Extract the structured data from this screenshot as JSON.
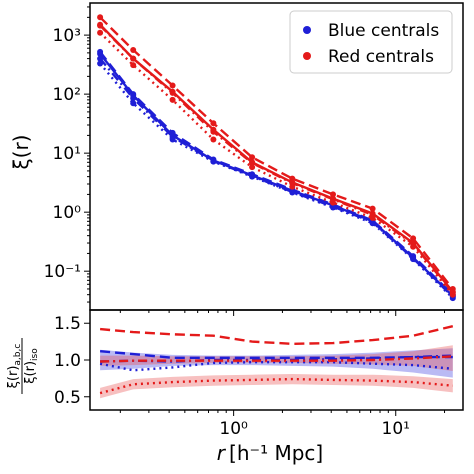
{
  "chart_data": [
    {
      "type": "line",
      "panel": "top",
      "ylabel": "ξ(r)",
      "yscale": "log",
      "xscale": "log",
      "xlim": [
        0.13,
        26
      ],
      "ylim": [
        0.022,
        3500
      ],
      "ytick_labels": [
        "10⁻¹",
        "10⁰",
        "10¹",
        "10²",
        "10³"
      ],
      "ytick_values": [
        0.1,
        1,
        10,
        100,
        1000
      ],
      "legend": {
        "position": "top-right",
        "entries": [
          "Blue centrals",
          "Red centrals"
        ]
      },
      "x": [
        0.15,
        0.24,
        0.42,
        0.75,
        1.3,
        2.3,
        4.1,
        7.2,
        12.8,
        22.5
      ],
      "series": [
        {
          "name": "Blue centrals",
          "color": "#1f1fd6",
          "dash": "solid",
          "values": [
            480,
            95,
            20,
            7.5,
            4.2,
            2.3,
            1.3,
            0.7,
            0.17,
            0.038
          ]
        },
        {
          "name": "",
          "color": "#1f1fd6",
          "dash": "dashed",
          "values": [
            520,
            100,
            22,
            7.8,
            4.4,
            2.4,
            1.35,
            0.72,
            0.18,
            0.04
          ]
        },
        {
          "name": "",
          "color": "#1f1fd6",
          "dash": "dashdot",
          "values": [
            400,
            85,
            19,
            7.3,
            4.1,
            2.2,
            1.25,
            0.68,
            0.165,
            0.037
          ]
        },
        {
          "name": "",
          "color": "#1f1fd6",
          "dash": "dotted",
          "values": [
            330,
            70,
            17,
            7.2,
            4.0,
            2.15,
            1.2,
            0.65,
            0.16,
            0.035
          ]
        },
        {
          "name": "Red centrals",
          "color": "#e41a1a",
          "dash": "solid",
          "values": [
            1500,
            400,
            110,
            25,
            7.0,
            3.2,
            1.7,
            0.95,
            0.3,
            0.045
          ]
        },
        {
          "name": "",
          "color": "#e41a1a",
          "dash": "dashed",
          "values": [
            2000,
            560,
            140,
            32,
            8.5,
            3.7,
            2.0,
            1.15,
            0.36,
            0.05
          ]
        },
        {
          "name": "",
          "color": "#e41a1a",
          "dash": "dashdot",
          "values": [
            1450,
            400,
            105,
            23,
            6.8,
            3.1,
            1.65,
            0.9,
            0.29,
            0.043
          ]
        },
        {
          "name": "",
          "color": "#e41a1a",
          "dash": "dotted",
          "values": [
            1100,
            310,
            80,
            17,
            5.8,
            2.7,
            1.45,
            0.8,
            0.26,
            0.04
          ]
        }
      ]
    },
    {
      "type": "line",
      "panel": "bottom",
      "ylabel_num": "ξ(r)",
      "ylabel_num_sub": "a,b,c",
      "ylabel_den": "ξ(r)",
      "ylabel_den_sub": "iso",
      "xlabel_r": "r",
      "xlabel_units": "[h⁻¹ Mpc]",
      "xscale": "log",
      "xlim": [
        0.13,
        26
      ],
      "ylim": [
        0.32,
        1.68
      ],
      "ytick_labels": [
        "0.5",
        "1.0",
        "1.5"
      ],
      "ytick_values": [
        0.5,
        1.0,
        1.5
      ],
      "xtick_labels": [
        "10⁰",
        "10¹"
      ],
      "xtick_values": [
        1,
        10
      ],
      "x": [
        0.15,
        0.24,
        0.42,
        0.75,
        1.3,
        2.3,
        4.1,
        7.2,
        12.8,
        22.5
      ],
      "bands": [
        {
          "color": "#3a3ae0",
          "lower": [
            0.86,
            0.88,
            0.92,
            0.93,
            0.93,
            0.92,
            0.91,
            0.88,
            0.83,
            0.76
          ],
          "upper": [
            1.14,
            1.1,
            1.07,
            1.06,
            1.06,
            1.07,
            1.08,
            1.1,
            1.13,
            1.16
          ]
        },
        {
          "color": "#e84a4a",
          "lower": [
            0.92,
            0.93,
            0.95,
            0.96,
            0.96,
            0.96,
            0.95,
            0.94,
            0.92,
            0.85
          ],
          "upper": [
            1.06,
            1.06,
            1.05,
            1.05,
            1.05,
            1.05,
            1.06,
            1.08,
            1.12,
            1.2
          ]
        },
        {
          "color": "#e84a4a",
          "lower": [
            0.48,
            0.6,
            0.63,
            0.65,
            0.66,
            0.67,
            0.66,
            0.65,
            0.62,
            0.56
          ],
          "upper": [
            0.62,
            0.74,
            0.77,
            0.79,
            0.8,
            0.81,
            0.8,
            0.8,
            0.78,
            0.74
          ]
        }
      ],
      "series": [
        {
          "color": "#1f1fd6",
          "dash": "dashed",
          "values": [
            1.12,
            1.08,
            1.03,
            1.03,
            1.03,
            1.03,
            1.03,
            1.03,
            1.04,
            1.04
          ]
        },
        {
          "color": "#1f1fd6",
          "dash": "dashdot",
          "values": [
            0.98,
            0.99,
            0.98,
            1.0,
            1.0,
            1.0,
            1.01,
            1.02,
            1.04,
            1.06
          ]
        },
        {
          "color": "#1f1fd6",
          "dash": "dotted",
          "values": [
            0.95,
            0.86,
            0.9,
            0.96,
            0.97,
            0.97,
            0.97,
            0.95,
            0.93,
            0.88
          ]
        },
        {
          "color": "#e41a1a",
          "dash": "dashed",
          "values": [
            1.42,
            1.38,
            1.35,
            1.33,
            1.25,
            1.22,
            1.23,
            1.27,
            1.33,
            1.46
          ]
        },
        {
          "color": "#e41a1a",
          "dash": "dashdot",
          "values": [
            0.98,
            0.99,
            0.99,
            0.99,
            0.99,
            0.99,
            0.99,
            1.0,
            1.02,
            1.05
          ]
        },
        {
          "color": "#e41a1a",
          "dash": "dotted",
          "values": [
            0.55,
            0.67,
            0.7,
            0.72,
            0.73,
            0.74,
            0.73,
            0.72,
            0.7,
            0.65
          ]
        }
      ]
    }
  ]
}
